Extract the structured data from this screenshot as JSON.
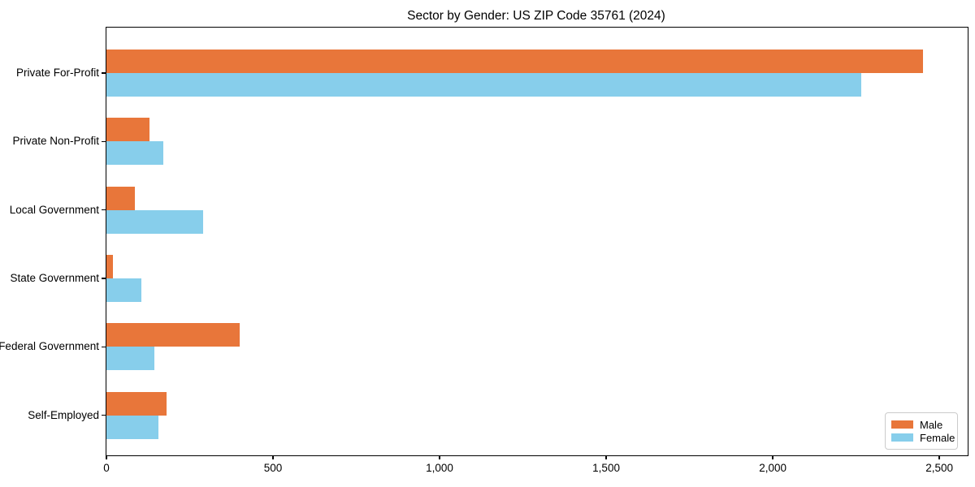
{
  "chart_data": {
    "type": "bar",
    "orientation": "horizontal",
    "title": "Sector by Gender: US ZIP Code 35761 (2024)",
    "categories": [
      "Private For-Profit",
      "Private Non-Profit",
      "Local Government",
      "State Government",
      "Federal Government",
      "Self-Employed"
    ],
    "series": [
      {
        "name": "Male",
        "color": "#e8763a",
        "values": [
          2450,
          130,
          85,
          20,
          400,
          180
        ]
      },
      {
        "name": "Female",
        "color": "#87ceeb",
        "values": [
          2265,
          170,
          290,
          105,
          145,
          155
        ]
      }
    ],
    "xlabel": "",
    "ylabel": "",
    "xlim": [
      0,
      2585
    ],
    "xticks": [
      0,
      500,
      1000,
      1500,
      2000,
      2500
    ],
    "xtick_labels": [
      "0",
      "500",
      "1,000",
      "1,500",
      "2,000",
      "2,500"
    ],
    "legend_position": "lower-right",
    "grid": false
  },
  "colors": {
    "male_bar": "#e8763a",
    "female_bar": "#87ceeb",
    "spine": "#000000",
    "legend_border": "#cbcbcb",
    "text": "#000000",
    "background": "#ffffff"
  }
}
